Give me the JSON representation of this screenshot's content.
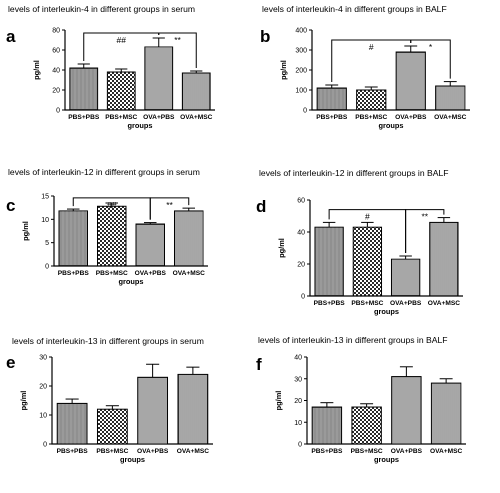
{
  "chart_data": [
    {
      "id": "a",
      "type": "bar",
      "letter": "a",
      "title": "levels of interleukin-4 in different groups in serum",
      "ylabel": "pg/ml",
      "xlabel": "groups",
      "categories": [
        "PBS+PBS",
        "PBS+MSC",
        "OVA+PBS",
        "OVA+MSC"
      ],
      "values": [
        42,
        38,
        63,
        37
      ],
      "errors": [
        4,
        3,
        9,
        2
      ],
      "ylim": [
        0,
        80
      ],
      "yticks": [
        0,
        20,
        40,
        60,
        80
      ],
      "patterns": [
        "hgrid",
        "check",
        "hline",
        "vline"
      ],
      "annotations": [
        {
          "from": 0,
          "to": 2,
          "text": "##",
          "y": 77
        },
        {
          "from": 2,
          "to": 3,
          "text": "**",
          "y": 77
        }
      ]
    },
    {
      "id": "b",
      "type": "bar",
      "letter": "b",
      "title": "levels of interleukin-4 in different groups in BALF",
      "ylabel": "pg/ml",
      "xlabel": "groups",
      "categories": [
        "PBS+PBS",
        "PBS+MSC",
        "OVA+PBS",
        "OVA+MSC"
      ],
      "values": [
        110,
        100,
        290,
        120
      ],
      "errors": [
        15,
        15,
        30,
        22
      ],
      "ylim": [
        0,
        400
      ],
      "yticks": [
        0,
        100,
        200,
        300,
        400
      ],
      "patterns": [
        "hgrid",
        "check",
        "hline",
        "vline"
      ],
      "annotations": [
        {
          "from": 0,
          "to": 2,
          "text": "#",
          "y": 350
        },
        {
          "from": 2,
          "to": 3,
          "text": "*",
          "y": 350
        }
      ]
    },
    {
      "id": "c",
      "type": "bar",
      "letter": "c",
      "title": "levels of interleukin-12 in different groups in serum",
      "ylabel": "pg/ml",
      "xlabel": "groups",
      "categories": [
        "PBS+PBS",
        "PBS+MSC",
        "OVA+PBS",
        "OVA+MSC"
      ],
      "values": [
        11.8,
        12.8,
        9,
        11.8
      ],
      "errors": [
        0.4,
        0.7,
        0.3,
        0.6
      ],
      "ylim": [
        0,
        15
      ],
      "yticks": [
        0,
        5,
        10,
        15
      ],
      "patterns": [
        "hgrid",
        "check",
        "hline",
        "vline"
      ],
      "annotations": [
        {
          "from": 0,
          "to": 2,
          "text": "##",
          "y": 14.6
        },
        {
          "from": 2,
          "to": 3,
          "text": "**",
          "y": 14.6
        }
      ]
    },
    {
      "id": "d",
      "type": "bar",
      "letter": "d",
      "title": "levels of interleukin-12 in different groups in  BALF",
      "ylabel": "pg/ml",
      "xlabel": "groups",
      "categories": [
        "PBS+PBS",
        "PBS+MSC",
        "OVA+PBS",
        "OVA+MSC"
      ],
      "values": [
        43,
        43,
        23,
        46
      ],
      "errors": [
        3,
        3,
        2,
        3
      ],
      "ylim": [
        0,
        60
      ],
      "yticks": [
        0,
        20,
        40,
        60
      ],
      "patterns": [
        "hgrid",
        "check",
        "hline",
        "vline"
      ],
      "annotations": [
        {
          "from": 0,
          "to": 2,
          "text": "#",
          "y": 54
        },
        {
          "from": 2,
          "to": 3,
          "text": "**",
          "y": 54
        }
      ]
    },
    {
      "id": "e",
      "type": "bar",
      "letter": "e",
      "title": "levels of interleukin-13 in different groups in serum",
      "ylabel": "pg/ml",
      "xlabel": "groups",
      "categories": [
        "PBS+PBS",
        "PBS+MSC",
        "OVA+PBS",
        "OVA+MSC"
      ],
      "values": [
        14,
        12,
        23,
        24
      ],
      "errors": [
        1.5,
        1.2,
        4.5,
        2.5
      ],
      "ylim": [
        0,
        30
      ],
      "yticks": [
        0,
        10,
        20,
        30
      ],
      "patterns": [
        "hgrid",
        "check",
        "hline",
        "vline"
      ],
      "annotations": []
    },
    {
      "id": "f",
      "type": "bar",
      "letter": "f",
      "title": "levels of interleukin-13 in different groups in BALF",
      "ylabel": "pg/ml",
      "xlabel": "groups",
      "categories": [
        "PBS+PBS",
        "PBS+MSC",
        "OVA+PBS",
        "OVA+MSC"
      ],
      "values": [
        17,
        17,
        31,
        28
      ],
      "errors": [
        2,
        1.5,
        4.5,
        2
      ],
      "ylim": [
        0,
        40
      ],
      "yticks": [
        0,
        10,
        20,
        30,
        40
      ],
      "patterns": [
        "hgrid",
        "check",
        "hline",
        "vline"
      ],
      "annotations": []
    }
  ]
}
